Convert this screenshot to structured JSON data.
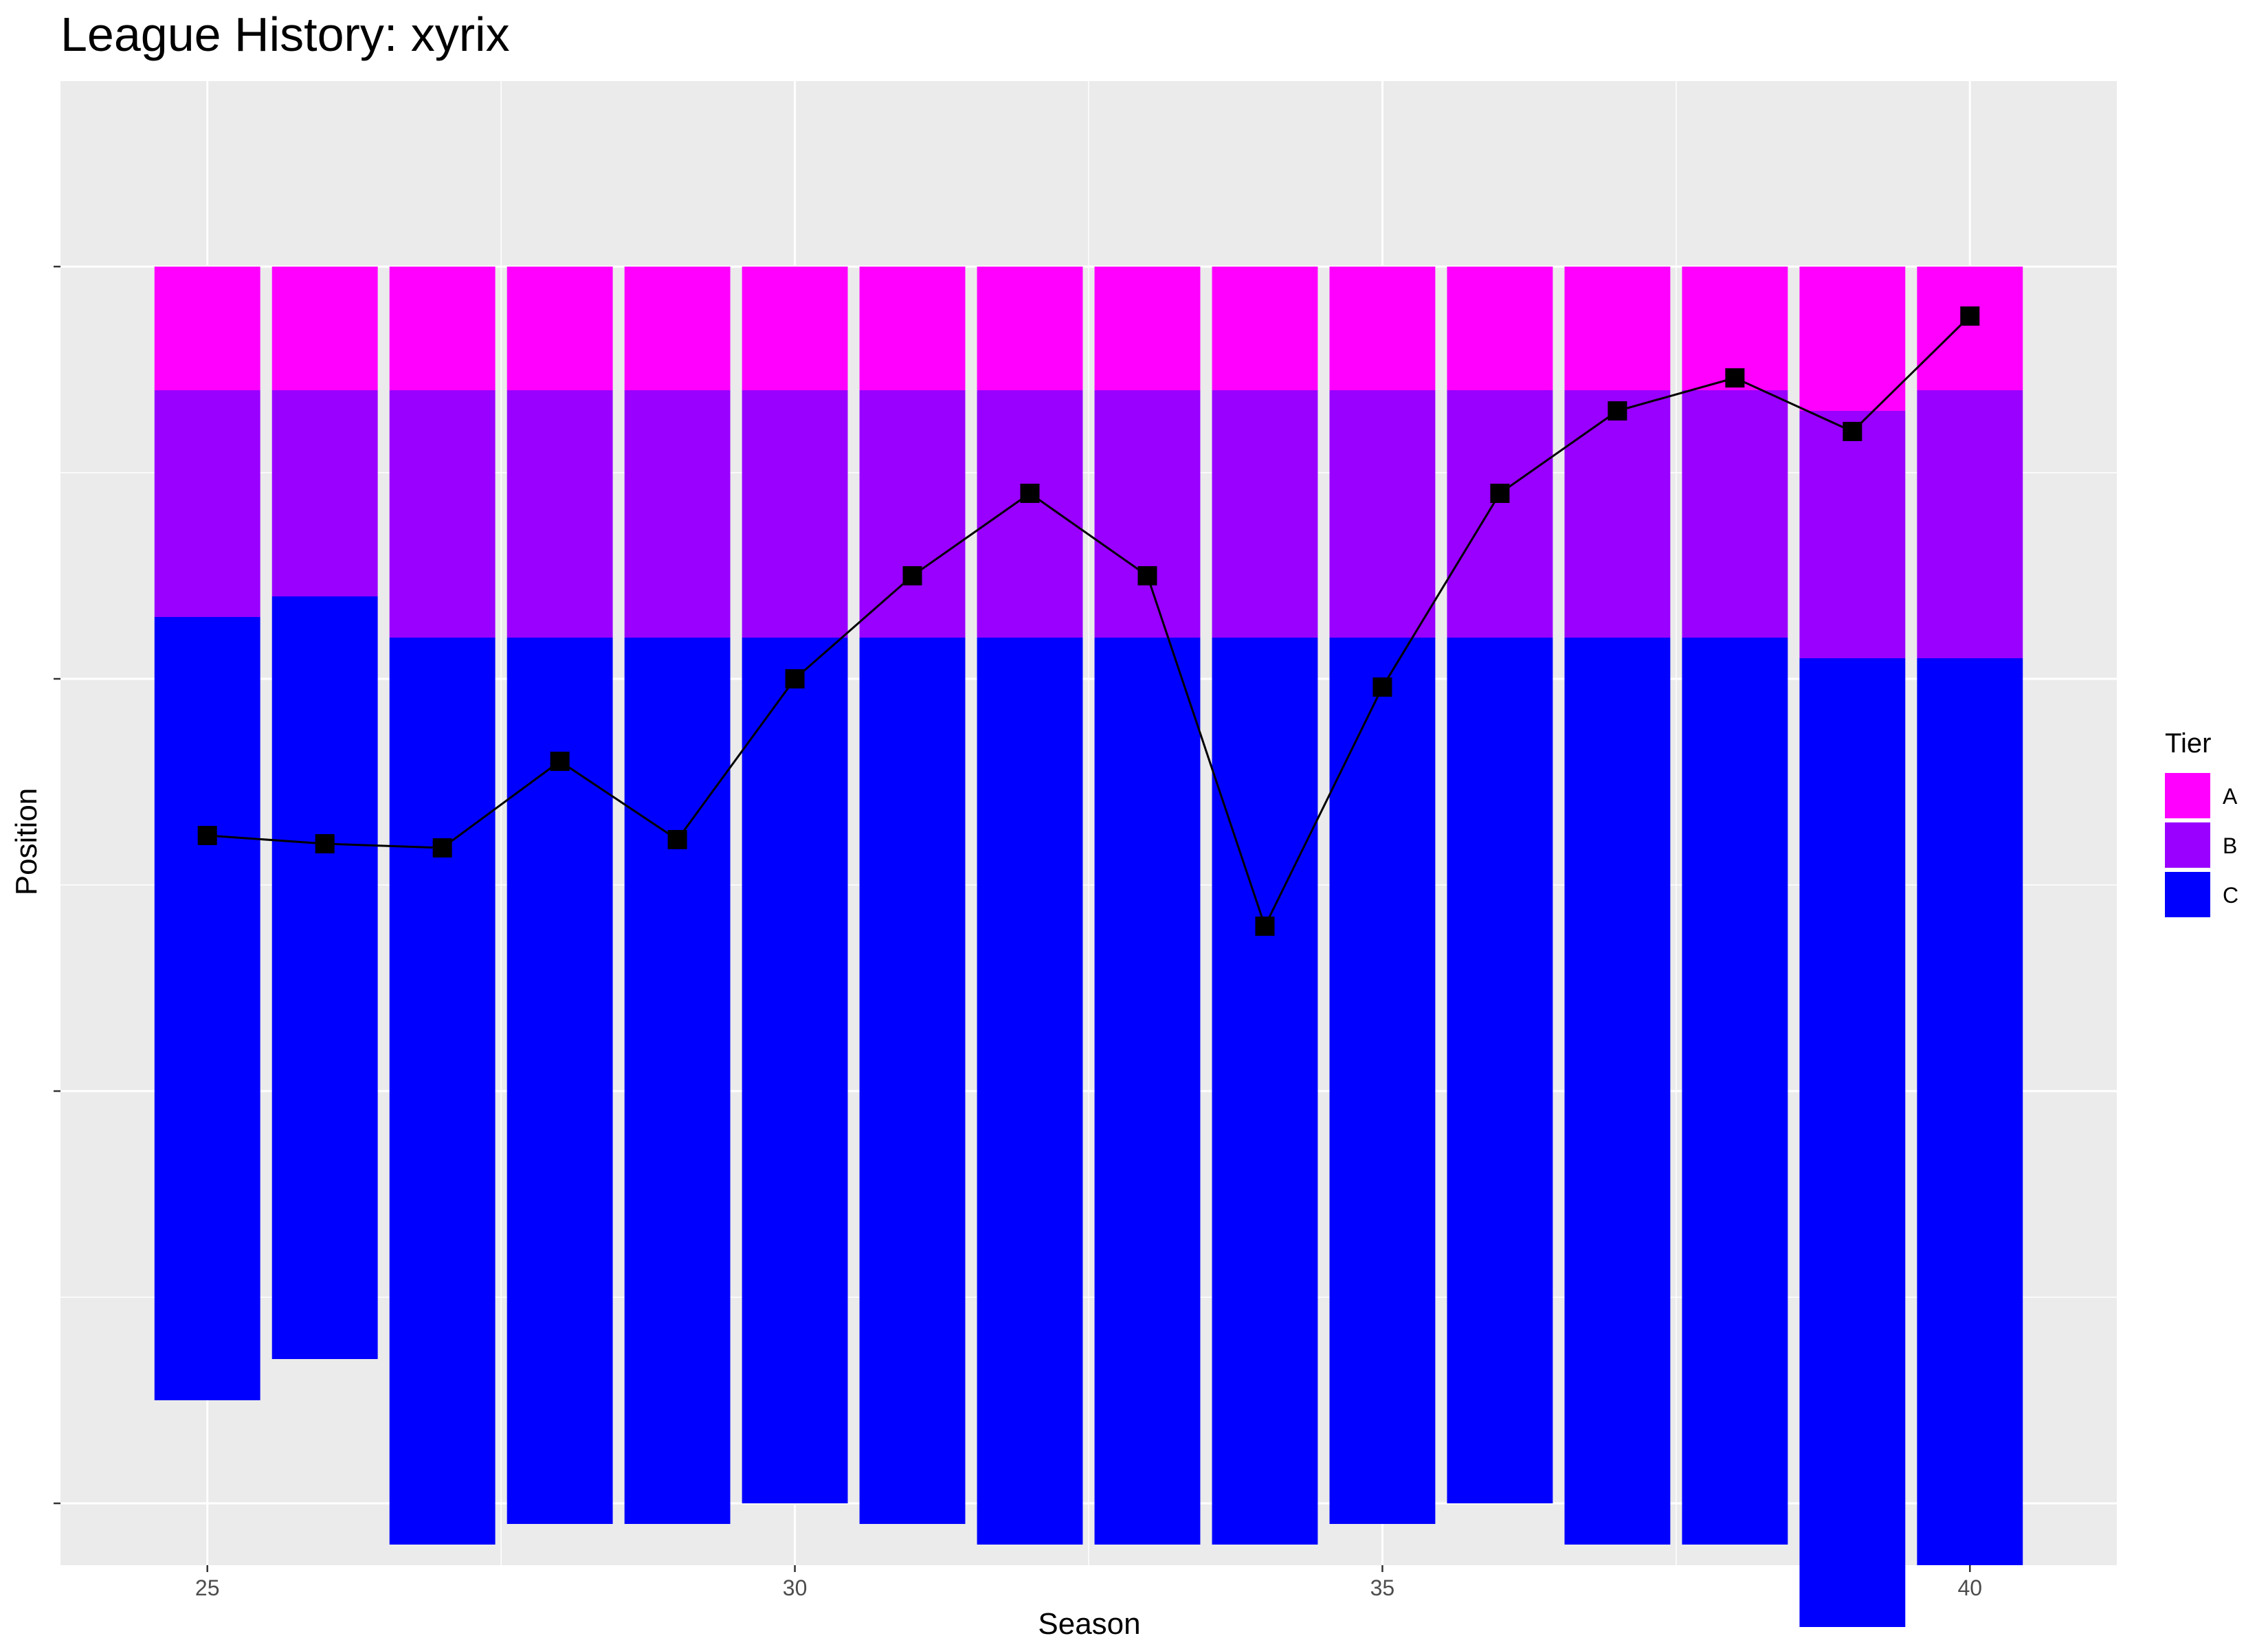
{
  "chart_data": {
    "type": "bar",
    "title": "League History: xyrix",
    "xlabel": "Season",
    "ylabel": "Position",
    "xlim": [
      23.75,
      41.25
    ],
    "ylim": [
      0.55,
      4.15
    ],
    "x_ticks": [
      25,
      30,
      35,
      40
    ],
    "y_ticks": [
      1,
      1.5,
      2,
      2.5,
      3,
      3.5,
      4
    ],
    "y_tick_labels_shown": false,
    "y_reversed": true,
    "grid": true,
    "legend": {
      "title": "Tier",
      "position": "right",
      "entries": [
        {
          "key": "A",
          "label": "A",
          "color": "#FF00FF"
        },
        {
          "key": "B",
          "label": "B",
          "color": "#9900FF"
        },
        {
          "key": "C",
          "label": "C",
          "color": "#0000FF"
        }
      ]
    },
    "tier_boundaries": {
      "seasons": [
        25,
        26,
        27,
        28,
        29,
        30,
        31,
        32,
        33,
        34,
        35,
        36,
        37,
        38,
        39,
        40
      ],
      "A_end": [
        1.3,
        1.3,
        1.3,
        1.3,
        1.3,
        1.3,
        1.3,
        1.3,
        1.3,
        1.3,
        1.3,
        1.3,
        1.3,
        1.3,
        1.35,
        1.3
      ],
      "B_end": [
        1.85,
        1.8,
        1.9,
        1.9,
        1.9,
        1.9,
        1.9,
        1.9,
        1.9,
        1.9,
        1.9,
        1.9,
        1.9,
        1.9,
        1.95,
        1.95
      ],
      "C_end": [
        3.75,
        3.65,
        4.1,
        4.05,
        4.05,
        4.0,
        4.05,
        4.1,
        4.1,
        4.1,
        4.05,
        4.0,
        4.1,
        4.1,
        4.3,
        4.15
      ]
    },
    "series": [
      {
        "name": "Position",
        "type": "line",
        "marker": "square",
        "color": "#000000",
        "x": [
          25,
          26,
          27,
          28,
          29,
          30,
          31,
          32,
          33,
          34,
          35,
          36,
          37,
          38,
          39,
          40
        ],
        "y": [
          2.38,
          2.4,
          2.41,
          2.2,
          2.39,
          2.0,
          1.75,
          1.55,
          1.75,
          2.6,
          2.02,
          1.55,
          1.35,
          1.27,
          1.4,
          1.12
        ]
      }
    ]
  },
  "colors": {
    "panel_background": "#EBEBEB",
    "grid_line": "#FFFFFF",
    "line": "#000000"
  }
}
